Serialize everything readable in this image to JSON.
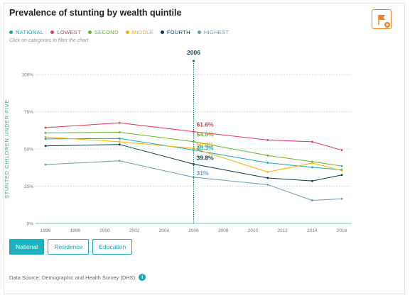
{
  "title": "Prevalence of stunting by wealth quintile",
  "hint": "Click on categories to filter the chart",
  "legend": [
    {
      "label": "NATIONAL",
      "color": "#1aa7b2"
    },
    {
      "label": "LOWEST",
      "color": "#e8374f"
    },
    {
      "label": "SECOND",
      "color": "#6ab42f"
    },
    {
      "label": "MIDDLE",
      "color": "#f4b400"
    },
    {
      "label": "FOURTH",
      "color": "#0e3a4f"
    },
    {
      "label": "HIGHEST",
      "color": "#6f9bb3"
    }
  ],
  "tabs": [
    {
      "label": "National",
      "active": true
    },
    {
      "label": "Residence",
      "active": false
    },
    {
      "label": "Education",
      "active": false
    }
  ],
  "source": "Data Source: Demographic and Health Survey (DHS)",
  "info_icon": "i",
  "chart_data": {
    "type": "line",
    "ylabel": "STUNTED CHILDREN UNDER-FIVE",
    "xlim": [
      1996,
      2016
    ],
    "ylim": [
      0,
      100
    ],
    "x_ticks": [
      "1996",
      "1998",
      "2000",
      "2002",
      "2004",
      "2006",
      "2008",
      "2010",
      "2012",
      "2014",
      "2016"
    ],
    "y_ticks": [
      {
        "value": 0,
        "label": "0%"
      },
      {
        "value": 25,
        "label": "25%"
      },
      {
        "value": 50,
        "label": "50%"
      },
      {
        "value": 75,
        "label": "75%"
      },
      {
        "value": 100,
        "label": "100%"
      }
    ],
    "x": [
      1996,
      2001,
      2006,
      2011,
      2014,
      2016
    ],
    "series": [
      {
        "name": "LOWEST",
        "color": "#e8374f",
        "values": [
          64.3,
          67.5,
          61.6,
          56.0,
          54.8,
          49.2
        ]
      },
      {
        "name": "SECOND",
        "color": "#6ab42f",
        "values": [
          60.8,
          61.2,
          54.9,
          45.6,
          41.5,
          38.5
        ]
      },
      {
        "name": "NATIONAL",
        "color": "#1aa7b2",
        "values": [
          56.7,
          57.0,
          49.3,
          40.7,
          37.7,
          36.0
        ]
      },
      {
        "name": "MIDDLE",
        "color": "#f4b400",
        "values": [
          58.0,
          54.8,
          50.4,
          34.5,
          40.5,
          35.5
        ]
      },
      {
        "name": "FOURTH",
        "color": "#0e3a4f",
        "values": [
          52.0,
          53.0,
          39.8,
          30.5,
          28.5,
          32.5
        ]
      },
      {
        "name": "HIGHEST",
        "color": "#6f9bb3",
        "values": [
          39.5,
          42.0,
          31.0,
          26.0,
          15.5,
          16.5
        ]
      }
    ],
    "highlight": {
      "x": 2006,
      "label": "2006",
      "labels": [
        {
          "name": "LOWEST",
          "text": "61.6%"
        },
        {
          "name": "SECOND",
          "text": "54.9%"
        },
        {
          "name": "MIDDLE",
          "text": "50.4%"
        },
        {
          "name": "NATIONAL",
          "text": "49.3%"
        },
        {
          "name": "FOURTH",
          "text": "39.8%"
        },
        {
          "name": "HIGHEST",
          "text": "31%"
        }
      ]
    }
  }
}
